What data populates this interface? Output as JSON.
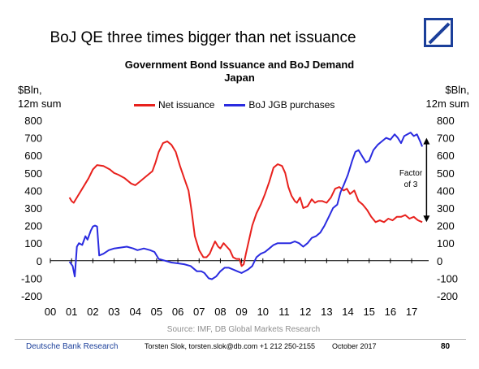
{
  "header": {
    "slide_title": "BoJ QE three times bigger than net issuance",
    "logo_icon": "deutsche-bank-slash-logo"
  },
  "chart_data": {
    "type": "line",
    "title": "Government Bond Issuance and BoJ Demand",
    "subtitle": "Japan",
    "ylabel_left": "$Bln, 12m sum",
    "ylabel_left_line1": "$Bln,",
    "ylabel_left_line2": "12m sum",
    "ylabel_right": "$Bln, 12m sum",
    "ylabel_right_line1": "$Bln,",
    "ylabel_right_line2": "12m sum",
    "ylim": [
      -200,
      800
    ],
    "yticks": [
      -200,
      -100,
      0,
      100,
      200,
      300,
      400,
      500,
      600,
      700,
      800
    ],
    "xlim": [
      2000,
      2017.8
    ],
    "xtick_labels": [
      "00",
      "01",
      "02",
      "03",
      "04",
      "05",
      "06",
      "07",
      "08",
      "09",
      "10",
      "11",
      "12",
      "13",
      "14",
      "15",
      "16",
      "17"
    ],
    "grid": false,
    "legend_placement": "top-center",
    "series": [
      {
        "name": "Net issuance",
        "color": "#e8211d",
        "x": [
          2000.9,
          2001.0,
          2001.1,
          2001.3,
          2001.5,
          2001.8,
          2002.0,
          2002.2,
          2002.5,
          2002.8,
          2003.0,
          2003.2,
          2003.5,
          2003.8,
          2004.0,
          2004.2,
          2004.5,
          2004.8,
          2004.95,
          2005.1,
          2005.3,
          2005.5,
          2005.7,
          2005.9,
          2006.1,
          2006.3,
          2006.5,
          2006.65,
          2006.8,
          2007.0,
          2007.2,
          2007.35,
          2007.5,
          2007.6,
          2007.75,
          2007.9,
          2008.0,
          2008.15,
          2008.3,
          2008.45,
          2008.6,
          2008.75,
          2008.9,
          2009.0,
          2009.1,
          2009.2,
          2009.35,
          2009.5,
          2009.7,
          2009.9,
          2010.1,
          2010.3,
          2010.5,
          2010.7,
          2010.9,
          2011.05,
          2011.2,
          2011.35,
          2011.5,
          2011.6,
          2011.75,
          2011.9,
          2012.1,
          2012.3,
          2012.45,
          2012.6,
          2012.8,
          2013.0,
          2013.2,
          2013.4,
          2013.6,
          2013.8,
          2013.95,
          2014.1,
          2014.3,
          2014.5,
          2014.7,
          2014.9,
          2015.1,
          2015.3,
          2015.5,
          2015.7,
          2015.9,
          2016.1,
          2016.3,
          2016.5,
          2016.7,
          2016.9,
          2017.1,
          2017.3,
          2017.5
        ],
        "values": [
          360,
          340,
          330,
          370,
          410,
          470,
          520,
          545,
          540,
          520,
          500,
          490,
          470,
          440,
          430,
          450,
          480,
          510,
          560,
          620,
          670,
          680,
          660,
          620,
          540,
          470,
          400,
          280,
          140,
          60,
          20,
          20,
          40,
          70,
          110,
          80,
          70,
          100,
          80,
          60,
          20,
          10,
          10,
          -30,
          -20,
          40,
          120,
          200,
          270,
          320,
          380,
          450,
          530,
          550,
          540,
          500,
          420,
          370,
          340,
          330,
          360,
          300,
          310,
          350,
          330,
          340,
          340,
          330,
          360,
          410,
          420,
          400,
          410,
          380,
          400,
          340,
          320,
          290,
          250,
          220,
          230,
          220,
          240,
          230,
          250,
          250,
          260,
          240,
          250,
          230,
          220
        ]
      },
      {
        "name": "BoJ JGB purchases",
        "color": "#2a2be0",
        "x": [
          2000.9,
          2001.05,
          2001.15,
          2001.25,
          2001.35,
          2001.5,
          2001.65,
          2001.75,
          2001.9,
          2002.0,
          2002.1,
          2002.2,
          2002.3,
          2002.5,
          2002.75,
          2003.0,
          2003.3,
          2003.6,
          2003.9,
          2004.1,
          2004.4,
          2004.7,
          2004.9,
          2005.1,
          2005.4,
          2005.7,
          2006.0,
          2006.3,
          2006.6,
          2006.9,
          2007.1,
          2007.25,
          2007.45,
          2007.6,
          2007.8,
          2008.0,
          2008.2,
          2008.4,
          2008.6,
          2008.8,
          2009.0,
          2009.15,
          2009.3,
          2009.5,
          2009.7,
          2009.9,
          2010.1,
          2010.3,
          2010.5,
          2010.7,
          2010.9,
          2011.1,
          2011.3,
          2011.5,
          2011.7,
          2011.9,
          2012.1,
          2012.3,
          2012.5,
          2012.7,
          2012.9,
          2013.1,
          2013.3,
          2013.5,
          2013.65,
          2013.8,
          2014.0,
          2014.2,
          2014.35,
          2014.5,
          2014.7,
          2014.85,
          2015.0,
          2015.2,
          2015.4,
          2015.6,
          2015.8,
          2016.0,
          2016.2,
          2016.35,
          2016.5,
          2016.65,
          2016.8,
          2016.95,
          2017.1,
          2017.25,
          2017.4,
          2017.5
        ],
        "values": [
          -5,
          -30,
          -90,
          80,
          100,
          90,
          140,
          120,
          170,
          195,
          200,
          195,
          30,
          40,
          60,
          70,
          75,
          80,
          70,
          60,
          70,
          60,
          50,
          10,
          0,
          -10,
          -15,
          -20,
          -30,
          -60,
          -60,
          -70,
          -100,
          -105,
          -90,
          -60,
          -40,
          -40,
          -50,
          -60,
          -70,
          -60,
          -50,
          -30,
          20,
          40,
          50,
          70,
          90,
          100,
          100,
          100,
          100,
          110,
          100,
          80,
          100,
          130,
          140,
          160,
          200,
          250,
          300,
          320,
          390,
          430,
          490,
          570,
          620,
          630,
          590,
          560,
          570,
          630,
          660,
          680,
          700,
          690,
          720,
          700,
          670,
          710,
          720,
          730,
          710,
          720,
          680,
          650
        ]
      }
    ],
    "annotation": {
      "line1": "Factor",
      "line2": "of 3",
      "arrow_from": 700,
      "arrow_to": 220,
      "arrow_x": 2017.7
    }
  },
  "source": "Source: IMF, DB Global Markets Research",
  "footer": {
    "brand": "Deutsche Bank Research",
    "contact": "Torsten Slok, torsten.slok@db.com  +1 212 250-2155",
    "date": "October  2017",
    "page": "80"
  }
}
